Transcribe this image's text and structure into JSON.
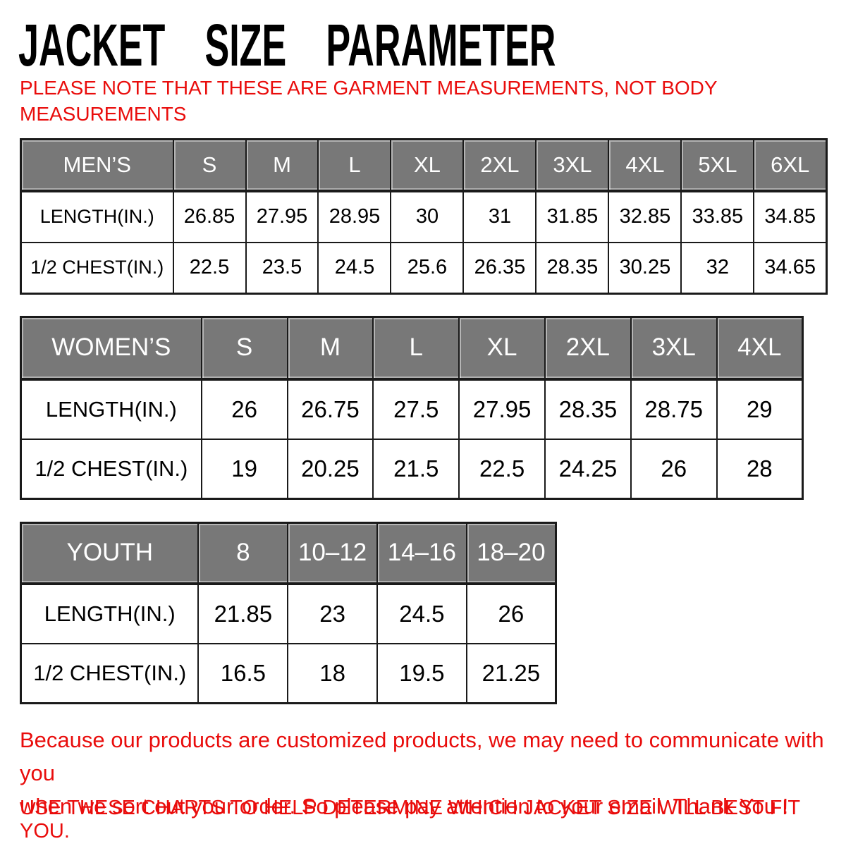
{
  "page": {
    "title": "JACKET SIZE PARAMETER",
    "note_lines": [
      "PLEASE NOTE THAT THESE ARE GARMENT MEASUREMENTS, NOT BODY",
      "MEASUREMENTS"
    ],
    "footer_para_lines": [
      "Because our products are customized products, we may need to communicate with you",
      "when we sort out your order. So please pay attention to your email. Thank You !"
    ],
    "footer_note": "USE THESE CHARTS TO HELP DETERMINE WHICH JACKET SIZE WILL BEST FIT YOU."
  },
  "colors": {
    "accent_red": "#e90d0c",
    "table_header_gray": "#787878",
    "table_header_text": "#ffffff",
    "table_border_black": "#1a1a1a"
  },
  "tables": [
    {
      "id": "mens",
      "header": [
        "MEN’S",
        "S",
        "M",
        "L",
        "XL",
        "2XL",
        "3XL",
        "4XL",
        "5XL",
        "6XL"
      ],
      "rows": [
        {
          "label": "LENGTH(IN.)",
          "values": [
            "26.85",
            "27.95",
            "28.95",
            "30",
            "31",
            "31.85",
            "32.85",
            "33.85",
            "34.85"
          ]
        },
        {
          "label": "1/2 CHEST(IN.)",
          "values": [
            "22.5",
            "23.5",
            "24.5",
            "25.6",
            "26.35",
            "28.35",
            "30.25",
            "32",
            "34.65"
          ]
        }
      ]
    },
    {
      "id": "womens",
      "header": [
        "WOMEN’S",
        "S",
        "M",
        "L",
        "XL",
        "2XL",
        "3XL",
        "4XL"
      ],
      "rows": [
        {
          "label": "LENGTH(IN.)",
          "values": [
            "26",
            "26.75",
            "27.5",
            "27.95",
            "28.35",
            "28.75",
            "29"
          ]
        },
        {
          "label": "1/2 CHEST(IN.)",
          "values": [
            "19",
            "20.25",
            "21.5",
            "22.5",
            "24.25",
            "26",
            "28"
          ]
        }
      ]
    },
    {
      "id": "youth",
      "header": [
        "YOUTH",
        "8",
        "10–12",
        "14–16",
        "18–20"
      ],
      "rows": [
        {
          "label": "LENGTH(IN.)",
          "values": [
            "21.85",
            "23",
            "24.5",
            "26"
          ]
        },
        {
          "label": "1/2 CHEST(IN.)",
          "values": [
            "16.5",
            "18",
            "19.5",
            "21.25"
          ]
        }
      ]
    }
  ]
}
